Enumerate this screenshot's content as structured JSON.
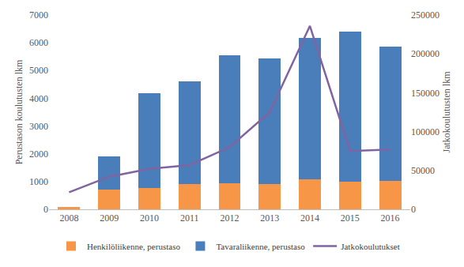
{
  "chart_data": {
    "type": "bar",
    "stacked": true,
    "grid": false,
    "legend": "bottom",
    "categories": [
      "2008",
      "2009",
      "2010",
      "2011",
      "2012",
      "2013",
      "2014",
      "2015",
      "2016"
    ],
    "y_label": "Perustason koulutusten lkm",
    "y2_label": "Jatkokoulutusten lkm",
    "ylim": [
      0,
      7000
    ],
    "yticks": [
      0,
      1000,
      2000,
      3000,
      4000,
      5000,
      6000,
      7000
    ],
    "y2lim": [
      0,
      250000
    ],
    "y2ticks": [
      0,
      50000,
      100000,
      150000,
      200000,
      250000
    ],
    "series": [
      {
        "name": "Henkilöliikenne, perustaso",
        "type": "bar",
        "color": "#f79646",
        "values": [
          80,
          700,
          780,
          920,
          950,
          900,
          1080,
          1000,
          1030
        ]
      },
      {
        "name": "Tavaraliikenne, perustaso",
        "type": "bar",
        "color": "#4a7ebb",
        "values": [
          0,
          1220,
          3390,
          3680,
          4610,
          4530,
          5100,
          5400,
          4820
        ]
      },
      {
        "name": "Jatkokoulutukset",
        "type": "line",
        "axis": "y2",
        "color": "#8064a2",
        "values": [
          22000,
          42000,
          52000,
          57000,
          80000,
          125000,
          236000,
          75000,
          77000
        ]
      }
    ]
  }
}
